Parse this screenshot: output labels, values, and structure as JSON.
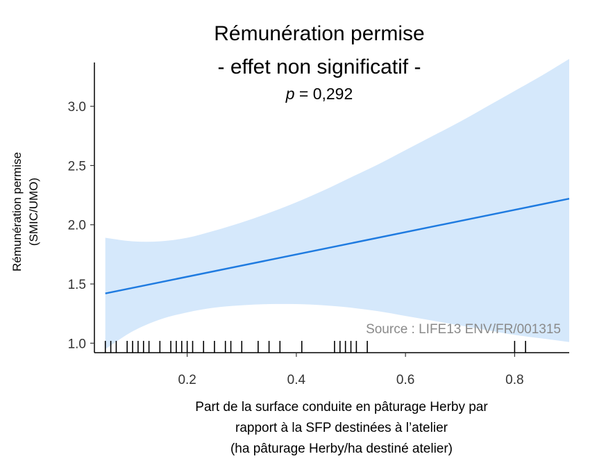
{
  "chart_data": {
    "type": "line",
    "title": "Rémunération permise",
    "subtitle": "- effet non significatif -",
    "p_label": "p",
    "p_value_text": "= 0,292",
    "xlabel_lines": [
      "Part de la surface conduite en pâturage Herby par",
      "rapport à la SFP destinées à l’atelier",
      "(ha pâturage Herby/ha destiné atelier)"
    ],
    "ylabel_lines": [
      "Rémunération permise",
      "(SMIC/UMO)"
    ],
    "source": "Source : LIFE13 ENV/FR/001315",
    "xlim": [
      0.03,
      0.9
    ],
    "ylim": [
      0.92,
      3.37
    ],
    "x_ticks": [
      0.2,
      0.4,
      0.6,
      0.8
    ],
    "x_tick_labels": [
      "0.2",
      "0.4",
      "0.6",
      "0.8"
    ],
    "y_ticks": [
      1.0,
      1.5,
      2.0,
      2.5,
      3.0
    ],
    "y_tick_labels": [
      "1.0",
      "1.5",
      "2.0",
      "2.5",
      "3.0"
    ],
    "grid": false,
    "series": [
      {
        "x": [
          0.05,
          0.9
        ],
        "y": [
          1.42,
          2.22
        ]
      }
    ],
    "confidence_band": {
      "x": [
        0.05,
        0.1,
        0.15,
        0.2,
        0.25,
        0.3,
        0.35,
        0.4,
        0.45,
        0.5,
        0.55,
        0.6,
        0.65,
        0.7,
        0.75,
        0.8,
        0.85,
        0.9
      ],
      "lower": [
        0.95,
        1.1,
        1.2,
        1.26,
        1.3,
        1.32,
        1.33,
        1.33,
        1.32,
        1.3,
        1.27,
        1.23,
        1.19,
        1.15,
        1.11,
        1.07,
        1.04,
        1.01
      ],
      "upper": [
        1.89,
        1.86,
        1.86,
        1.89,
        1.95,
        2.02,
        2.1,
        2.19,
        2.29,
        2.4,
        2.51,
        2.63,
        2.75,
        2.87,
        3.0,
        3.13,
        3.26,
        3.4
      ]
    },
    "rug_x": [
      0.05,
      0.06,
      0.07,
      0.09,
      0.1,
      0.11,
      0.12,
      0.13,
      0.15,
      0.17,
      0.18,
      0.19,
      0.2,
      0.21,
      0.23,
      0.25,
      0.27,
      0.28,
      0.3,
      0.33,
      0.35,
      0.37,
      0.41,
      0.47,
      0.48,
      0.49,
      0.5,
      0.51,
      0.53,
      0.8,
      0.82
    ],
    "colors": {
      "line": "#1f7be0",
      "band": "#d5e8fb",
      "axis": "#000000",
      "source_text": "#8a8a8a"
    }
  }
}
